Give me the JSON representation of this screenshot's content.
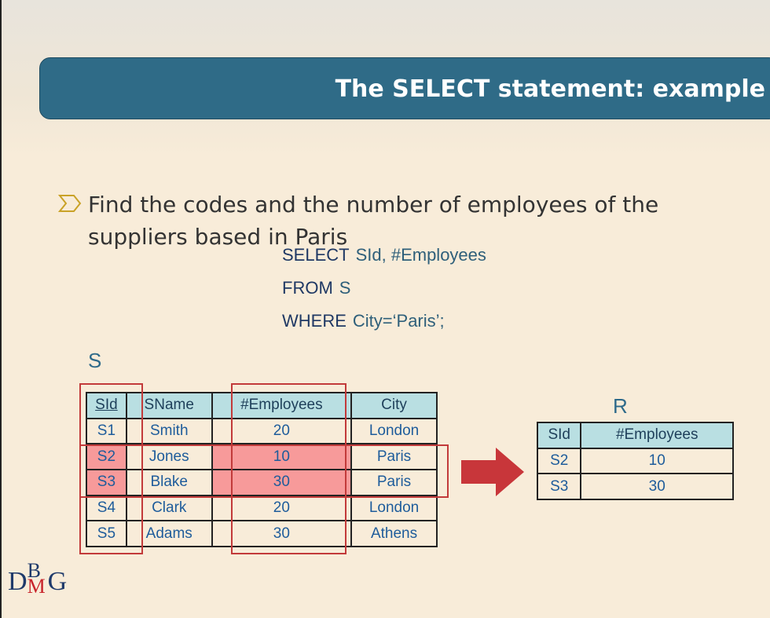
{
  "header": {
    "title": "The SELECT statement: example"
  },
  "bullet": {
    "text": "Find the codes and the number of employees of the suppliers based in Paris"
  },
  "query": {
    "lines": [
      {
        "keyword": "SELECT",
        "rest": "SId, #Employees"
      },
      {
        "keyword": "FROM",
        "rest": "S"
      },
      {
        "keyword": "WHERE",
        "rest": "City=‘Paris’;"
      }
    ]
  },
  "table_s": {
    "label": "S",
    "columns": [
      "SId",
      "SName",
      "#Employees",
      "City"
    ],
    "rows": [
      [
        "S1",
        "Smith",
        "20",
        "London"
      ],
      [
        "S2",
        "Jones",
        "10",
        "Paris"
      ],
      [
        "S3",
        "Blake",
        "30",
        "Paris"
      ],
      [
        "S4",
        "Clark",
        "20",
        "London"
      ],
      [
        "S5",
        "Adams",
        "30",
        "Athens"
      ]
    ]
  },
  "table_r": {
    "label": "R",
    "columns": [
      "SId",
      "#Employees"
    ],
    "rows": [
      [
        "S2",
        "10"
      ],
      [
        "S3",
        "30"
      ]
    ]
  },
  "logo": {
    "d": "D",
    "b": "B",
    "m": "M",
    "g": "G"
  }
}
